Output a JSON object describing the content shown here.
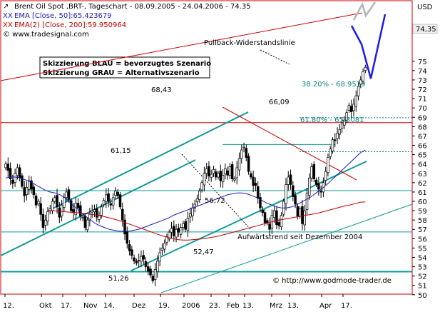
{
  "legend": {
    "price": "Brent Oil Spot ,BRT-, Tageschart - 08.09.2005 - 24.04.2006 - 74.35",
    "ema50": "EMA [Close, 50]:65.423679",
    "ema200": "EMA(2) [Close, 200]:59.950964",
    "source": "© www.tradesignal.com"
  },
  "annotations": {
    "box_line1": "Skizzierung BLAU = bevorzugtes Szenario",
    "box_line2": "Skizzierung GRAU = Alternativszenario",
    "pullback": "Pullback-Widerstandslinie",
    "uptrend": "Aufwärtstrend seit Dezember 2004",
    "copyright": "© http://www.godmode-trader.de",
    "fib382": "38.20% - 68.9519",
    "fib618": "61.80% - 65.3081"
  },
  "levels": {
    "l6843": "68,43",
    "l6609": "66,09",
    "l6115": "61,15",
    "l5672": "56,72",
    "l5247": "52,47",
    "l5126": "51,26",
    "last": "74,35"
  },
  "colors": {
    "price": "#000000",
    "ema50": "#1c1cb4",
    "ema200": "#c00000",
    "trend": "#119999",
    "resistance": "#cc0000",
    "scenario_blue": "#1a1af0",
    "scenario_grey": "#b4b4b4",
    "fibo": "#118080",
    "frame": "#cc0000"
  },
  "chart_data": {
    "type": "line",
    "title": "Brent Oil Spot ,BRT-, Tageschart - 08.09.2005 - 24.04.2006 - 74.35",
    "ylabel": "USD",
    "ylim": [
      50,
      76
    ],
    "x_ticks": [
      "12.",
      "Okt",
      "17.",
      "Nov",
      "14.",
      "Dez",
      "19.",
      "2006",
      "23.",
      "Feb",
      "13.",
      "Mrz",
      "13.",
      "Apr",
      "17."
    ],
    "y_ticks": [
      50,
      51,
      52,
      53,
      54,
      55,
      56,
      57,
      58,
      59,
      60,
      61,
      62,
      63,
      64,
      65,
      66,
      67,
      68,
      69,
      70,
      71,
      72,
      73,
      74,
      75
    ],
    "last_value": 74.35,
    "price_close": [
      64.0,
      63.3,
      62.4,
      61.9,
      63.0,
      63.6,
      62.5,
      61.6,
      60.6,
      61.5,
      62.2,
      61.3,
      60.7,
      59.6,
      60.0,
      58.6,
      57.2,
      58.0,
      58.9,
      59.2,
      60.0,
      60.4,
      59.4,
      58.3,
      59.6,
      60.4,
      61.0,
      60.2,
      59.0,
      58.8,
      59.8,
      59.3,
      58.4,
      58.3,
      57.2,
      58.0,
      58.6,
      59.0,
      59.1,
      58.3,
      58.5,
      59.4,
      60.1,
      60.7,
      60.0,
      59.6,
      60.4,
      61.1,
      60.6,
      59.4,
      58.0,
      56.5,
      55.5,
      54.7,
      54.2,
      53.6,
      53.4,
      53.7,
      54.1,
      53.8,
      53.0,
      52.5,
      52.1,
      51.5,
      52.7,
      53.6,
      54.5,
      55.0,
      55.5,
      56.2,
      56.7,
      57.1,
      56.3,
      57.0,
      56.7,
      57.2,
      57.6,
      57.0,
      58.2,
      58.7,
      59.3,
      59.7,
      60.3,
      61.1,
      62.0,
      63.0,
      63.5,
      62.7,
      62.9,
      63.4,
      62.6,
      63.0,
      62.2,
      62.8,
      63.5,
      62.8,
      63.7,
      62.4,
      62.4,
      63.6,
      64.6,
      65.5,
      65.8,
      64.7,
      63.2,
      62.6,
      61.7,
      61.7,
      60.3,
      59.3,
      58.8,
      57.7,
      57.7,
      57.0,
      58.5,
      59.0,
      57.5,
      57.4,
      58.5,
      60.0,
      61.8,
      62.6,
      61.8,
      60.5,
      59.7,
      58.4,
      59.2,
      57.6,
      59.0,
      60.9,
      62.5,
      63.7,
      62.4,
      61.8,
      61.3,
      61.0,
      62.0,
      63.2,
      64.7,
      65.6,
      66.6,
      66.5,
      67.3,
      67.7,
      68.4,
      68.7,
      69.5,
      70.3,
      69.6,
      70.4,
      71.3,
      72.3,
      73.0,
      73.9,
      74.35
    ],
    "ema50": [
      62.5,
      62.6,
      62.6,
      62.5,
      62.3,
      62.1,
      61.8,
      61.5,
      61.2,
      61.0,
      60.9,
      60.7,
      60.4,
      59.9,
      59.4,
      59.0,
      58.5,
      58.1,
      57.7,
      57.4,
      57.2,
      57.0,
      56.9,
      56.8,
      56.8,
      56.8,
      56.9,
      57.0,
      57.2,
      57.4,
      57.6,
      57.8,
      58.0,
      58.2,
      58.5,
      58.7,
      58.9,
      59.1,
      59.3,
      59.5,
      59.7,
      59.9,
      60.1,
      60.3,
      60.5,
      60.7,
      60.8,
      60.9,
      60.9,
      60.8,
      60.6,
      60.4,
      60.1,
      59.8,
      59.6,
      59.4,
      59.3,
      59.3,
      59.4,
      59.6,
      59.9,
      60.2,
      60.5,
      60.9,
      61.3,
      61.7,
      62.2,
      62.7,
      63.2,
      63.7,
      64.2,
      64.7,
      65.2,
      65.5
    ],
    "ema200": [
      59.0,
      59.0,
      58.95,
      58.9,
      58.85,
      58.8,
      58.75,
      58.7,
      58.65,
      58.55,
      58.45,
      58.35,
      58.2,
      58.05,
      57.9,
      57.7,
      57.5,
      57.3,
      57.1,
      56.9,
      56.7,
      56.5,
      56.3,
      56.15,
      56.0,
      55.9,
      55.85,
      55.85,
      55.9,
      55.95,
      56.0,
      56.1,
      56.2,
      56.3,
      56.45,
      56.6,
      56.75,
      56.9,
      57.05,
      57.2,
      57.35,
      57.5,
      57.65,
      57.8,
      57.95,
      58.05,
      58.15,
      58.25,
      58.35,
      58.45,
      58.55,
      58.65,
      58.75,
      58.9,
      59.05,
      59.2,
      59.35,
      59.5,
      59.6,
      59.75,
      59.9,
      59.95
    ]
  }
}
